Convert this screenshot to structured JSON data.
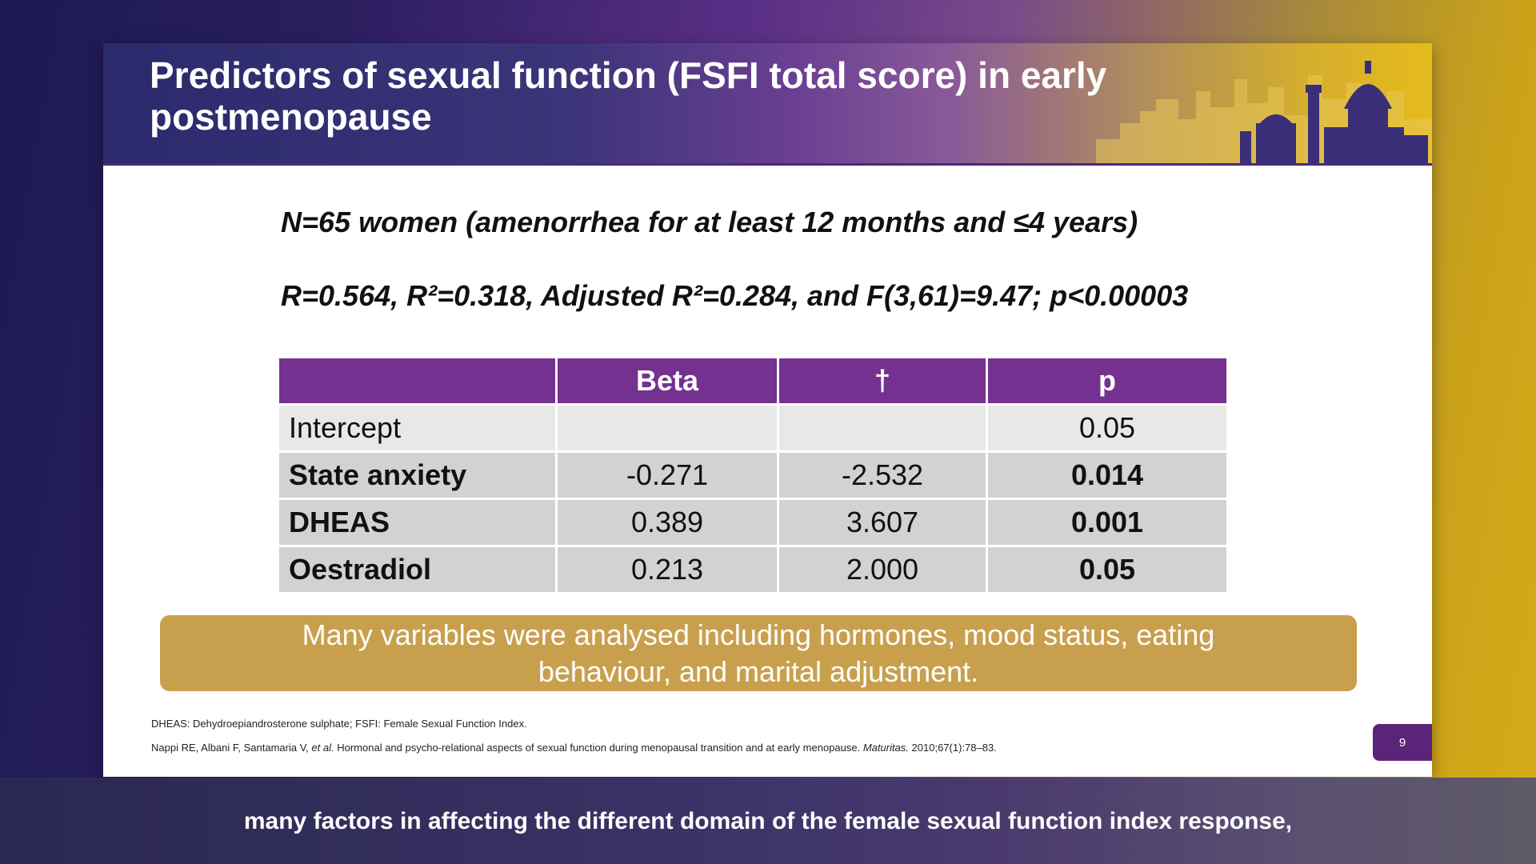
{
  "slide": {
    "title": "Predictors of sexual function (FSFI total score) in early postmenopause",
    "info_line_1": "N=65 women  (amenorrhea for at least 12 months and ≤4 years)",
    "info_line_2": "R=0.564, R²=0.318, Adjusted R²=0.284, and F(3,61)=9.47; p<0.00003",
    "table": {
      "headers": [
        "",
        "Beta",
        "†",
        "p"
      ],
      "rows": [
        {
          "label": "Intercept",
          "beta": "",
          "t": "",
          "p": "0.05"
        },
        {
          "label": "State anxiety",
          "beta": "-0.271",
          "t": "-2.532",
          "p": "0.014"
        },
        {
          "label": "DHEAS",
          "beta": "0.389",
          "t": "3.607",
          "p": "0.001"
        },
        {
          "label": "Oestradiol",
          "beta": "0.213",
          "t": "2.000",
          "p": "0.05"
        }
      ]
    },
    "callout": "Many variables were analysed including hormones, mood status, eating behaviour, and marital adjustment.",
    "footnote_abbrev": "DHEAS: Dehydroepiandrosterone sulphate; FSFI: Female Sexual Function Index.",
    "footnote_ref": {
      "authors": "Nappi RE, Albani F, Santamaria V, ",
      "etal": "et al.",
      "title": " Hormonal and psycho-relational aspects of sexual function during menopausal transition and at early menopause. ",
      "journal": "Maturitas.",
      "citation": " 2010;67(1):78–83."
    },
    "page_number": "9"
  },
  "caption": "many factors in affecting the different domain of the female sexual function index response,",
  "colors": {
    "header_purple": "#74318f",
    "callout_gold": "#c8a04d",
    "page_badge": "#5a2478"
  },
  "icons": [
    "city-skyline-icon"
  ]
}
